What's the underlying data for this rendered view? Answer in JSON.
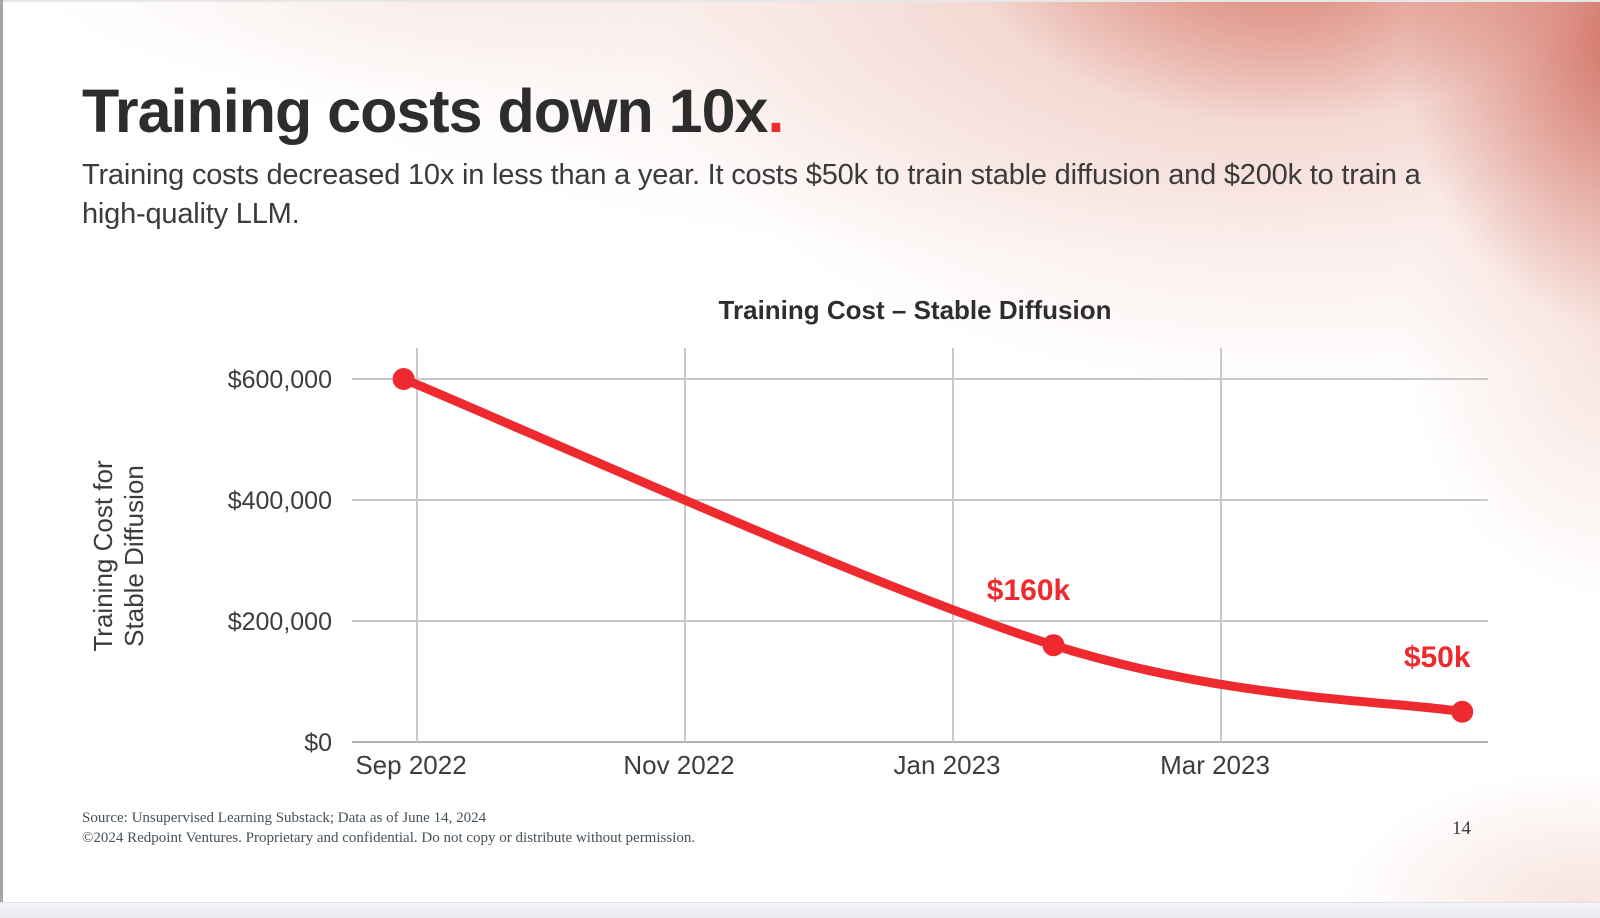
{
  "slide": {
    "title": {
      "text": "Training costs down 10x",
      "period": "."
    },
    "subtitle": "Training costs decreased 10x in less than a year. It costs $50k to train stable diffusion and $200k to train a high-quality LLM.",
    "page_number": "14"
  },
  "footer": {
    "source_line": "Source: Unsupervised Learning Substack; Data as of June 14, 2024",
    "copyright_line": "©2024 Redpoint Ventures. Proprietary and confidential. Do not copy or distribute without permission."
  },
  "colors": {
    "accent_red": "#ee2a2e",
    "title_text": "#2d2d2d",
    "body_text": "#3b3b3b",
    "gridline": "#c9c9c9",
    "axis_line": "#b3b3b3",
    "tick_text": "#3d3d3d",
    "footer_text": "#46525a"
  },
  "chart_data": {
    "type": "line",
    "title": "Training Cost – Stable Diffusion",
    "ylabel_lines": [
      "Training Cost for",
      "Stable Diffusion"
    ],
    "xlabel": "",
    "grid": true,
    "legend": "none",
    "ylim": [
      0,
      650000
    ],
    "xlim_months_from_sep2022": [
      -0.5,
      8.0
    ],
    "y_ticks": [
      {
        "value": 0,
        "label": "$0"
      },
      {
        "value": 200000,
        "label": "$200,000"
      },
      {
        "value": 400000,
        "label": "$400,000"
      },
      {
        "value": 600000,
        "label": "$600,000"
      }
    ],
    "x_ticks": [
      {
        "m": 0,
        "label": "Sep 2022"
      },
      {
        "m": 2,
        "label": "Nov 2022"
      },
      {
        "m": 4,
        "label": "Jan 2023"
      },
      {
        "m": 6,
        "label": "Mar 2023"
      }
    ],
    "series": [
      {
        "name": "Training Cost for Stable Diffusion",
        "color": "#ee2a2e",
        "points": [
          {
            "m": -0.1,
            "date_approx": "Sep 2022",
            "value": 600000,
            "label": null
          },
          {
            "m": 4.75,
            "date_approx": "Late Jan 2023",
            "value": 160000,
            "label": "$160k"
          },
          {
            "m": 7.8,
            "date_approx": "Late Apr 2023",
            "value": 50000,
            "label": "$50k"
          }
        ]
      }
    ]
  }
}
